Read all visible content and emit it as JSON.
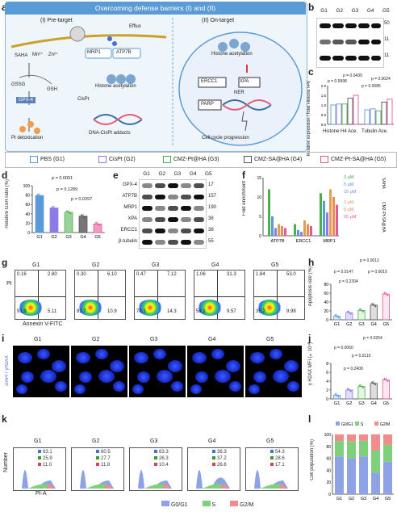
{
  "panels": {
    "a": "a",
    "b": "b",
    "c": "c",
    "d": "d",
    "e": "e",
    "f": "f",
    "g": "g",
    "h": "h",
    "i": "i",
    "j": "j",
    "k": "k",
    "l": "l"
  },
  "a": {
    "title": "Overcoming defense barriers (I) and (II)",
    "pretarget": "(I) Pre-target",
    "ontarget": "(II) On-target",
    "efflux": "Efflux",
    "saha": "SAHA",
    "mn": "Mn²⁺",
    "zn": "Zn²⁺",
    "gssg": "GSSG",
    "gsh": "GSH",
    "gpx4": "GPX-4",
    "mrp1": "MRP1",
    "atp7b": "ATP7B",
    "histone_acet": "Histone acetylation",
    "histone_acet2": "Histone acetylation",
    "ercc1": "ERCC1",
    "xpa": "XPA",
    "ner": "NER",
    "parp": "PARP",
    "cispt": "CisPt",
    "adducts": "DNA-CisPt adducts",
    "ptdetox": "Pt detoxication",
    "cellcycle": "Cell cycle progression"
  },
  "groups": [
    "G1",
    "G2",
    "G3",
    "G4",
    "G5"
  ],
  "b": {
    "rows": [
      "Tubulin Acetyl.",
      "Histone H4 Acetyl.",
      "Total Histone H4"
    ],
    "mw": [
      "50",
      "11",
      "11"
    ]
  },
  "c": {
    "ylabel": "Relative expression (Total Histone H4)",
    "yticks": [
      "2.0",
      "1.5",
      "1.0",
      "0.5",
      "0.0"
    ],
    "xlabels": [
      "Histone H4 Ace.",
      "Tubulin Ace."
    ],
    "pvals": [
      "p = 0.9998",
      "p = 0.0439",
      "p = 0.0685",
      "p = 0.0024"
    ]
  },
  "legend": [
    "PBS (G1)",
    "CisPt (G2)",
    "CMZ-Pt@HA (G3)",
    "CMZ-SA@HA (G4)",
    "CMZ-Pt-SA@HA (G5)"
  ],
  "colors": {
    "G1": "#5b9bd5",
    "G2": "#8c7ae6",
    "G3": "#4caf50",
    "G4": "#555555",
    "G5": "#e05a9a"
  },
  "d": {
    "ylabel": "Relative GSH ratio (%)",
    "yticks": [
      "100",
      "80",
      "60",
      "40",
      "20",
      "0"
    ],
    "pvals": [
      "p = 0.0001",
      "p = 0.1289",
      "p = 0.0297"
    ]
  },
  "e": {
    "rows": [
      "GPX-4",
      "ATP7B",
      "MRP1",
      "XPA",
      "ERCC1",
      "β-tubulin"
    ],
    "mw": [
      "17",
      "157",
      "190",
      "38",
      "38",
      "55"
    ]
  },
  "f": {
    "ylabel": "Fold enrichment",
    "yticks": [
      "15",
      "10",
      "5",
      "0"
    ],
    "xlabels": [
      "ATP7B",
      "ERCC1",
      "MRP1"
    ],
    "legend": [
      "3 μM",
      "5 μM",
      "15 μM",
      "3 μM",
      "5 μM",
      "15 μM"
    ],
    "groupA": "SAHA",
    "groupB": "CMZ-Pt-SA@HA"
  },
  "g": {
    "xlabel": "Annexin V-FITC",
    "ylabel": "PI",
    "quads": [
      [
        "0.16",
        "2.80",
        "91.9",
        "5.11"
      ],
      [
        "0.30",
        "6.10",
        "82.7",
        "10.9"
      ],
      [
        "0.47",
        "7.12",
        "78.1",
        "14.3"
      ],
      [
        "1.06",
        "31.3",
        "58.1",
        "9.57"
      ],
      [
        "1.84",
        "53.0",
        "35.2",
        "9.98"
      ]
    ]
  },
  "h": {
    "ylabel": "Apoptosis rate (%)",
    "yticks": [
      "80",
      "60",
      "40",
      "20",
      "0"
    ],
    "pvals": [
      "p = 0.0012",
      "p = 0.0147",
      "p = 0.0010",
      "p = 0.2204"
    ]
  },
  "i": {
    "label": "DAPI / γH2AX"
  },
  "j": {
    "ylabel": "γ H2AX MFI (×10⁴)",
    "yticks": [
      "8",
      "6",
      "4",
      "2",
      "0"
    ],
    "pvals": [
      "p = 0.0254",
      "p = 0.0060",
      "p = 0.0110",
      "p = 0.2409"
    ]
  },
  "k": {
    "ylabel": "Number",
    "xlabel": "PI-A",
    "legend": [
      "G0/G1",
      "S",
      "G2/M"
    ],
    "vals": [
      [
        "63.1",
        "25.9",
        "11.0"
      ],
      [
        "60.5",
        "27.7",
        "11.8"
      ],
      [
        "63.3",
        "26.3",
        "10.4"
      ],
      [
        "36.3",
        "37.2",
        "26.6"
      ],
      [
        "54.3",
        "28.6",
        "17.1"
      ]
    ]
  },
  "l": {
    "ylabel": "Cell population (%)",
    "yticks": [
      "100",
      "80",
      "60",
      "40",
      "20",
      "0"
    ],
    "legend": [
      "G0/G1",
      "S",
      "G2/M"
    ]
  },
  "chart_data": [
    {
      "type": "bar",
      "title": "",
      "ylabel": "Relative GSH ratio (%)",
      "categories": [
        "G1",
        "G2",
        "G3",
        "G4",
        "G5"
      ],
      "values": [
        95,
        63,
        52,
        42,
        22
      ],
      "ylim": [
        0,
        120
      ]
    },
    {
      "type": "bar",
      "title": "",
      "ylabel": "Apoptosis rate (%)",
      "categories": [
        "G1",
        "G2",
        "G3",
        "G4",
        "G5"
      ],
      "values": [
        8,
        16,
        21,
        33,
        58
      ],
      "ylim": [
        0,
        80
      ]
    },
    {
      "type": "bar",
      "title": "",
      "ylabel": "γ H2AX MFI (×10⁴)",
      "categories": [
        "G1",
        "G2",
        "G3",
        "G4",
        "G5"
      ],
      "values": [
        0.8,
        2.0,
        2.8,
        3.5,
        4.3
      ],
      "ylim": [
        0,
        8
      ]
    },
    {
      "type": "bar",
      "title": "",
      "ylabel": "Relative expression (Total Histone H4)",
      "categories": [
        "Histone H4 Ace.",
        "Tubulin Ace."
      ],
      "series": [
        {
          "name": "PBS (G1)",
          "values": [
            1.0,
            0.75
          ]
        },
        {
          "name": "CisPt (G2)",
          "values": [
            1.05,
            0.8
          ]
        },
        {
          "name": "CMZ-Pt@HA (G3)",
          "values": [
            1.05,
            0.7
          ]
        },
        {
          "name": "CMZ-SA@HA (G4)",
          "values": [
            1.35,
            1.15
          ]
        },
        {
          "name": "CMZ-Pt-SA@HA (G5)",
          "values": [
            1.5,
            1.3
          ]
        }
      ],
      "ylim": [
        0,
        2.0
      ]
    },
    {
      "type": "bar",
      "title": "",
      "ylabel": "Cell population (%)",
      "categories": [
        "G1",
        "G2",
        "G3",
        "G4",
        "G5"
      ],
      "series": [
        {
          "name": "G0/G1",
          "values": [
            63.1,
            60.5,
            63.3,
            36.3,
            54.3
          ]
        },
        {
          "name": "S",
          "values": [
            25.9,
            27.7,
            26.3,
            37.2,
            28.6
          ]
        },
        {
          "name": "G2/M",
          "values": [
            11.0,
            11.8,
            10.4,
            26.6,
            17.1
          ]
        }
      ],
      "ylim": [
        0,
        100
      ]
    }
  ]
}
